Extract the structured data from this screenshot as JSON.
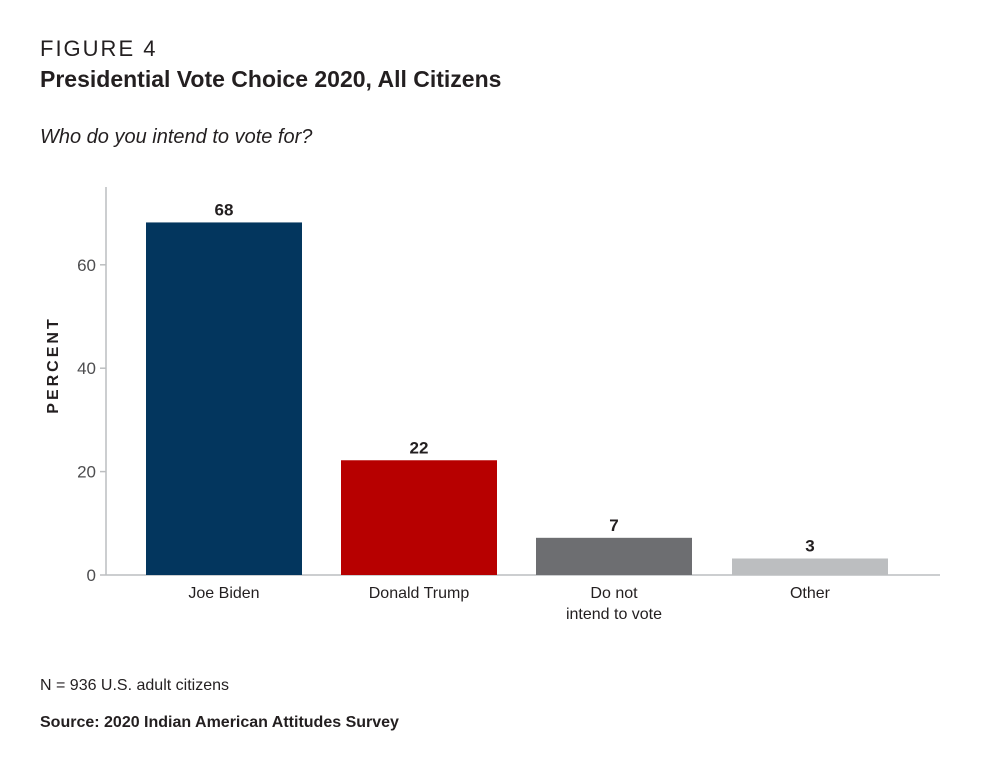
{
  "figure": {
    "label": "FIGURE 4",
    "title": "Presidential Vote Choice 2020, All Citizens",
    "subtitle": "Who do you intend to vote for?",
    "note": "N = 936 U.S. adult citizens",
    "source": "Source: 2020 Indian American Attitudes Survey"
  },
  "chart_data": {
    "type": "bar",
    "categories": [
      [
        "Joe Biden"
      ],
      [
        "Donald Trump"
      ],
      [
        "Do not",
        "intend to vote"
      ],
      [
        "Other"
      ]
    ],
    "values": [
      68,
      22,
      7,
      3
    ],
    "value_labels": [
      "68",
      "22",
      "7",
      "3"
    ],
    "colors": [
      "#03365e",
      "#b70000",
      "#6d6e71",
      "#bcbec0"
    ],
    "ylabel": "PERCENT",
    "xlabel": "",
    "ylim": [
      0,
      75
    ],
    "yticks": [
      0,
      20,
      40,
      60
    ],
    "grid": false,
    "legend": "none"
  }
}
